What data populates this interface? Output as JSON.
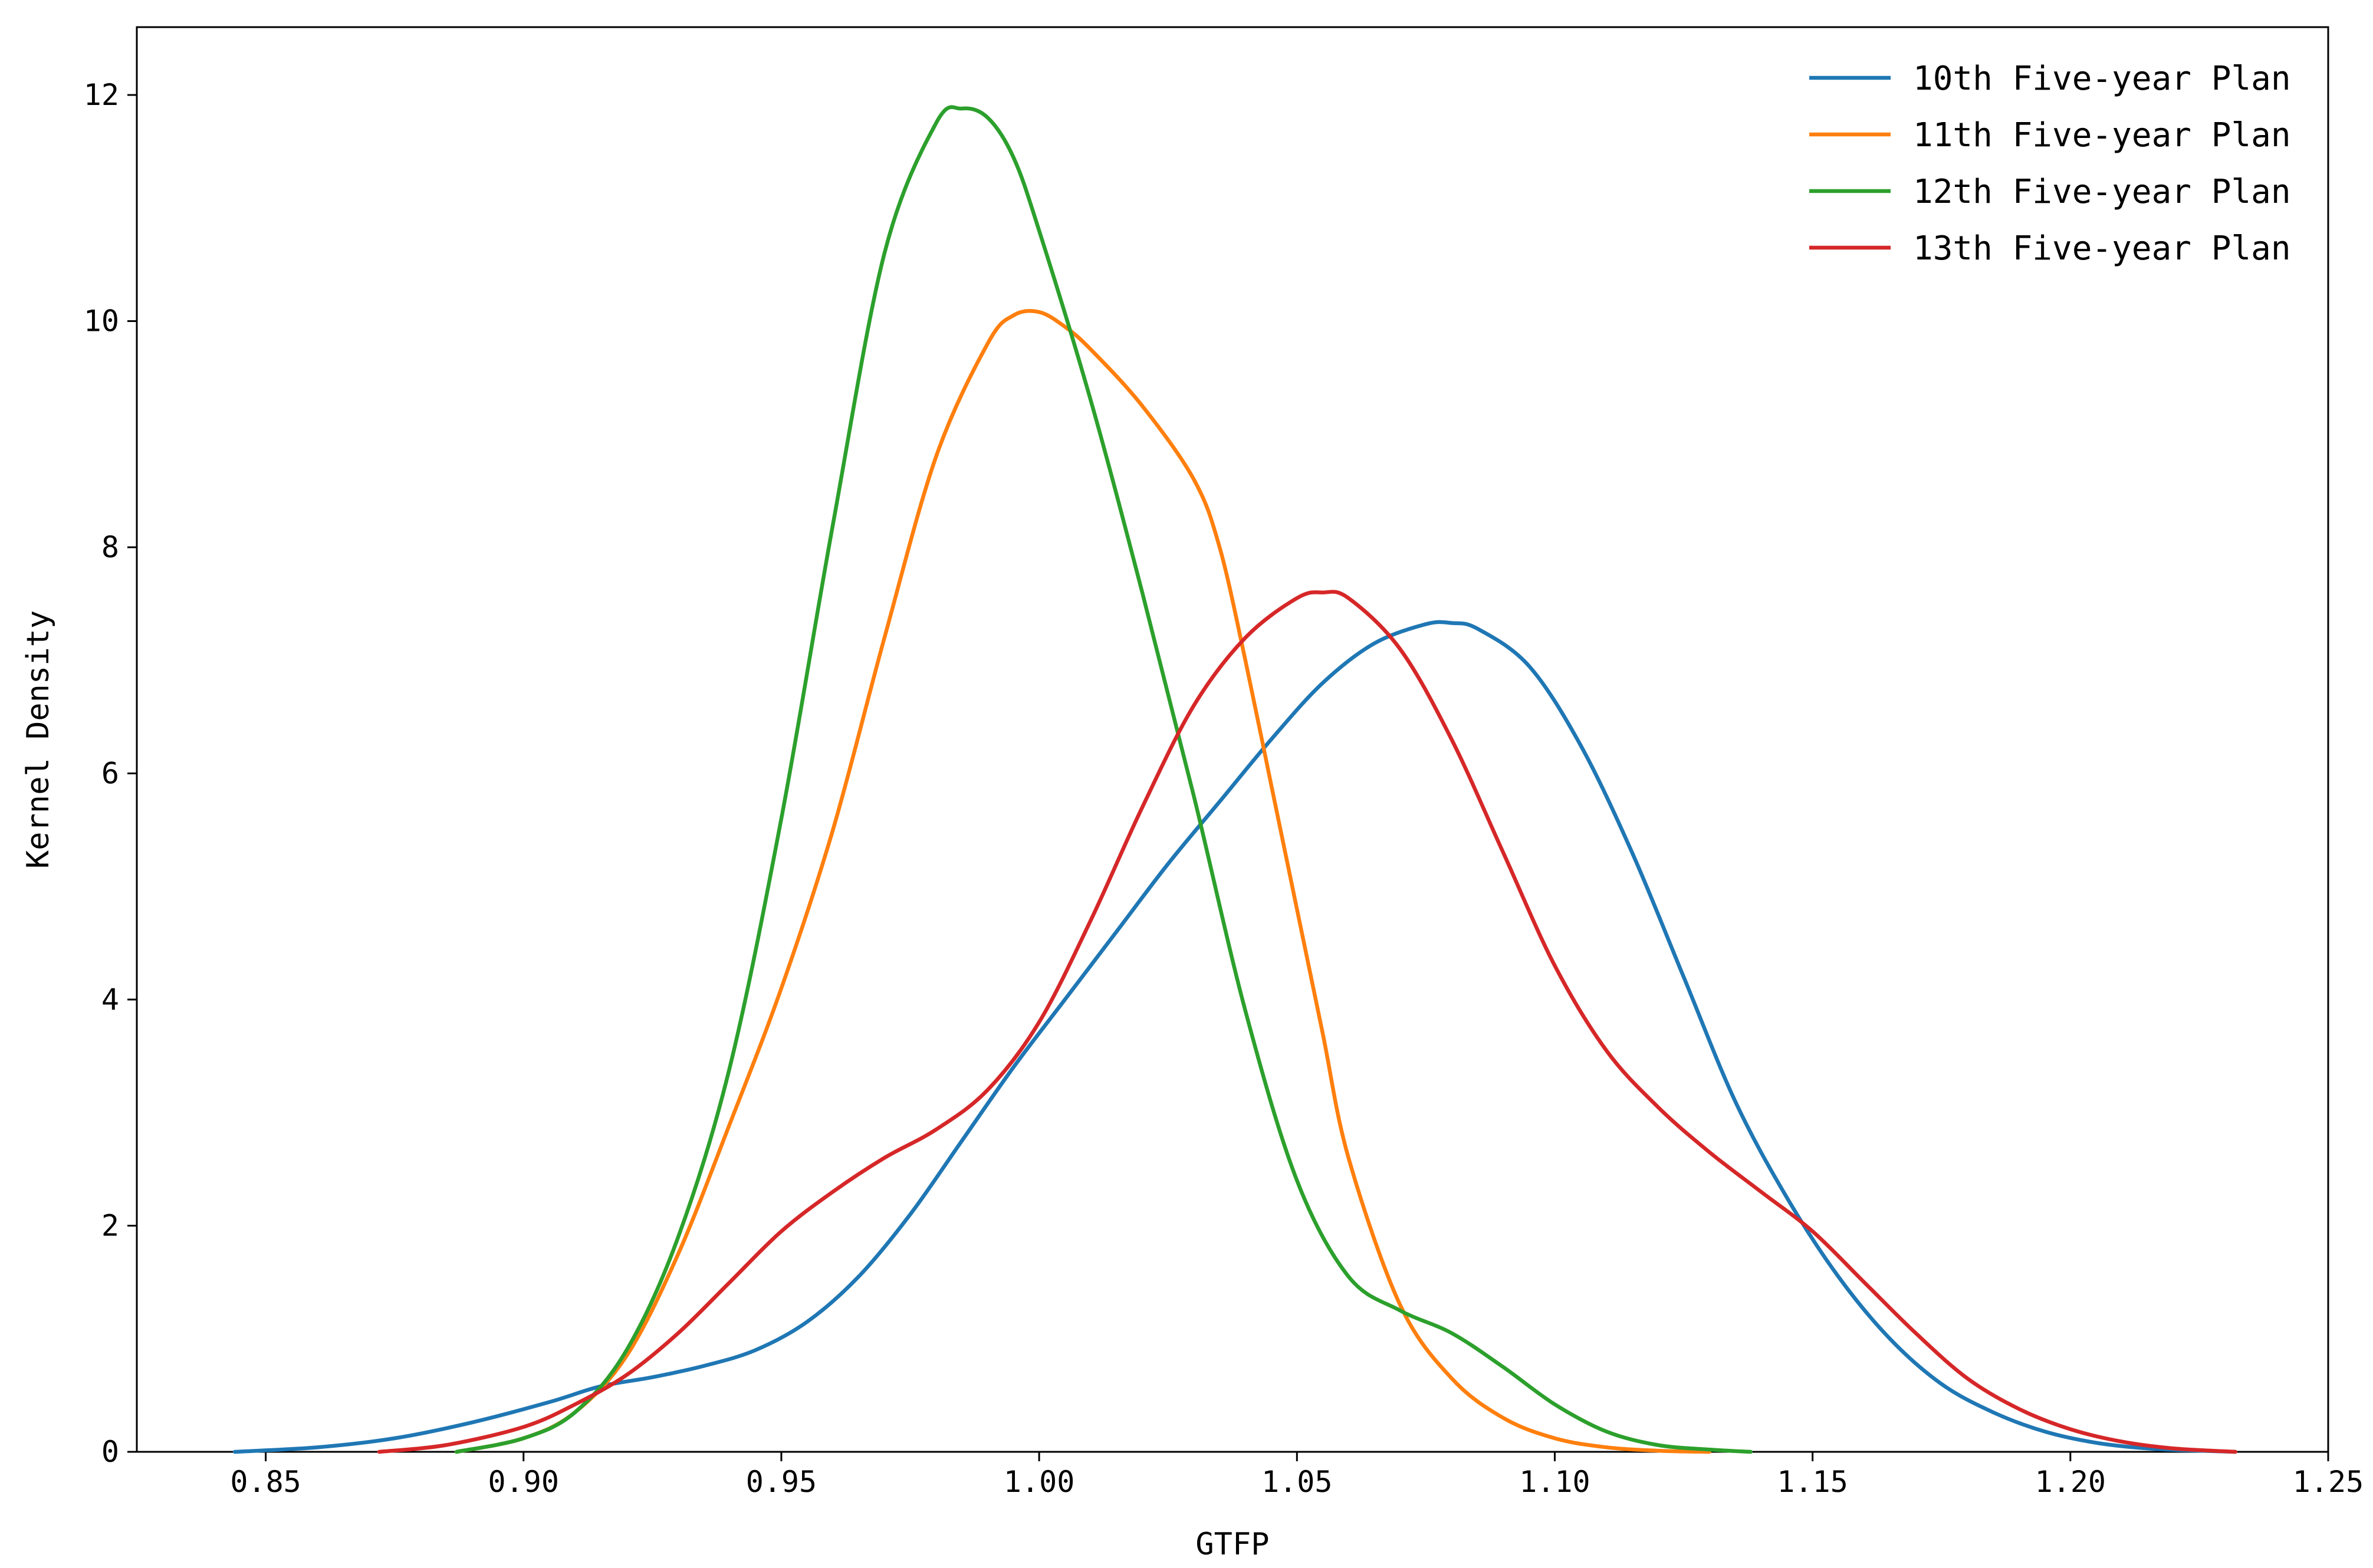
{
  "chart_data": {
    "type": "line",
    "title": "",
    "xlabel": "GTFP",
    "ylabel": "Kernel Density",
    "xlim": [
      0.825,
      1.25
    ],
    "ylim": [
      0,
      12.6
    ],
    "x_ticks": [
      0.85,
      0.9,
      0.95,
      1.0,
      1.05,
      1.1,
      1.15,
      1.2,
      1.25
    ],
    "x_tick_labels": [
      "0.85",
      "0.90",
      "0.95",
      "1.00",
      "1.05",
      "1.10",
      "1.15",
      "1.20",
      "1.25"
    ],
    "y_ticks": [
      0,
      2,
      4,
      6,
      8,
      10,
      12
    ],
    "y_tick_labels": [
      "0",
      "2",
      "4",
      "6",
      "8",
      "10",
      "12"
    ],
    "grid": false,
    "legend_position": "top-right",
    "series": [
      {
        "name": "10th Five-year Plan",
        "color": "#1f77b4",
        "x": [
          0.844,
          0.86,
          0.875,
          0.89,
          0.905,
          0.915,
          0.925,
          0.935,
          0.945,
          0.955,
          0.965,
          0.975,
          0.985,
          0.995,
          1.005,
          1.015,
          1.025,
          1.035,
          1.045,
          1.055,
          1.065,
          1.075,
          1.08,
          1.085,
          1.095,
          1.105,
          1.115,
          1.125,
          1.135,
          1.145,
          1.155,
          1.165,
          1.175,
          1.185,
          1.195,
          1.205,
          1.215,
          1.225,
          1.232
        ],
        "y": [
          0.0,
          0.04,
          0.12,
          0.26,
          0.44,
          0.58,
          0.66,
          0.76,
          0.9,
          1.15,
          1.55,
          2.1,
          2.75,
          3.4,
          4.0,
          4.6,
          5.2,
          5.75,
          6.3,
          6.8,
          7.15,
          7.32,
          7.33,
          7.28,
          6.95,
          6.25,
          5.3,
          4.2,
          3.1,
          2.25,
          1.55,
          1.0,
          0.6,
          0.35,
          0.18,
          0.08,
          0.03,
          0.01,
          0.0
        ]
      },
      {
        "name": "11th Five-year Plan",
        "color": "#ff7f0e",
        "x": [
          0.887,
          0.9,
          0.91,
          0.92,
          0.93,
          0.94,
          0.95,
          0.96,
          0.97,
          0.98,
          0.99,
          0.995,
          1.0,
          1.005,
          1.01,
          1.02,
          1.03,
          1.035,
          1.04,
          1.045,
          1.05,
          1.055,
          1.06,
          1.07,
          1.08,
          1.09,
          1.1,
          1.11,
          1.12,
          1.13
        ],
        "y": [
          0.0,
          0.12,
          0.35,
          0.85,
          1.75,
          2.9,
          4.1,
          5.5,
          7.2,
          8.8,
          9.8,
          10.05,
          10.08,
          9.95,
          9.75,
          9.25,
          8.6,
          8.0,
          7.0,
          5.9,
          4.8,
          3.7,
          2.6,
          1.3,
          0.65,
          0.3,
          0.12,
          0.04,
          0.01,
          0.0
        ]
      },
      {
        "name": "12th Five-year Plan",
        "color": "#2ca02c",
        "x": [
          0.887,
          0.9,
          0.91,
          0.92,
          0.93,
          0.94,
          0.95,
          0.96,
          0.97,
          0.98,
          0.985,
          0.99,
          0.995,
          1.0,
          1.01,
          1.02,
          1.03,
          1.04,
          1.05,
          1.06,
          1.07,
          1.08,
          1.09,
          1.1,
          1.11,
          1.12,
          1.13,
          1.138
        ],
        "y": [
          0.0,
          0.12,
          0.35,
          0.9,
          1.9,
          3.4,
          5.6,
          8.2,
          10.6,
          11.75,
          11.88,
          11.8,
          11.45,
          10.8,
          9.3,
          7.6,
          5.8,
          3.9,
          2.4,
          1.55,
          1.25,
          1.05,
          0.75,
          0.42,
          0.18,
          0.06,
          0.02,
          0.0
        ]
      },
      {
        "name": "13th Five-year Plan",
        "color": "#d62728",
        "x": [
          0.872,
          0.885,
          0.9,
          0.91,
          0.92,
          0.93,
          0.94,
          0.95,
          0.96,
          0.97,
          0.98,
          0.99,
          1.0,
          1.01,
          1.02,
          1.03,
          1.04,
          1.05,
          1.055,
          1.06,
          1.07,
          1.08,
          1.09,
          1.1,
          1.11,
          1.12,
          1.13,
          1.14,
          1.15,
          1.16,
          1.17,
          1.18,
          1.19,
          1.2,
          1.21,
          1.22,
          1.232
        ],
        "y": [
          0.0,
          0.06,
          0.22,
          0.42,
          0.68,
          1.05,
          1.5,
          1.95,
          2.3,
          2.6,
          2.85,
          3.2,
          3.8,
          4.7,
          5.7,
          6.6,
          7.2,
          7.55,
          7.6,
          7.55,
          7.1,
          6.3,
          5.3,
          4.3,
          3.55,
          3.05,
          2.65,
          2.3,
          1.95,
          1.5,
          1.05,
          0.65,
          0.38,
          0.2,
          0.09,
          0.03,
          0.0
        ]
      }
    ]
  }
}
